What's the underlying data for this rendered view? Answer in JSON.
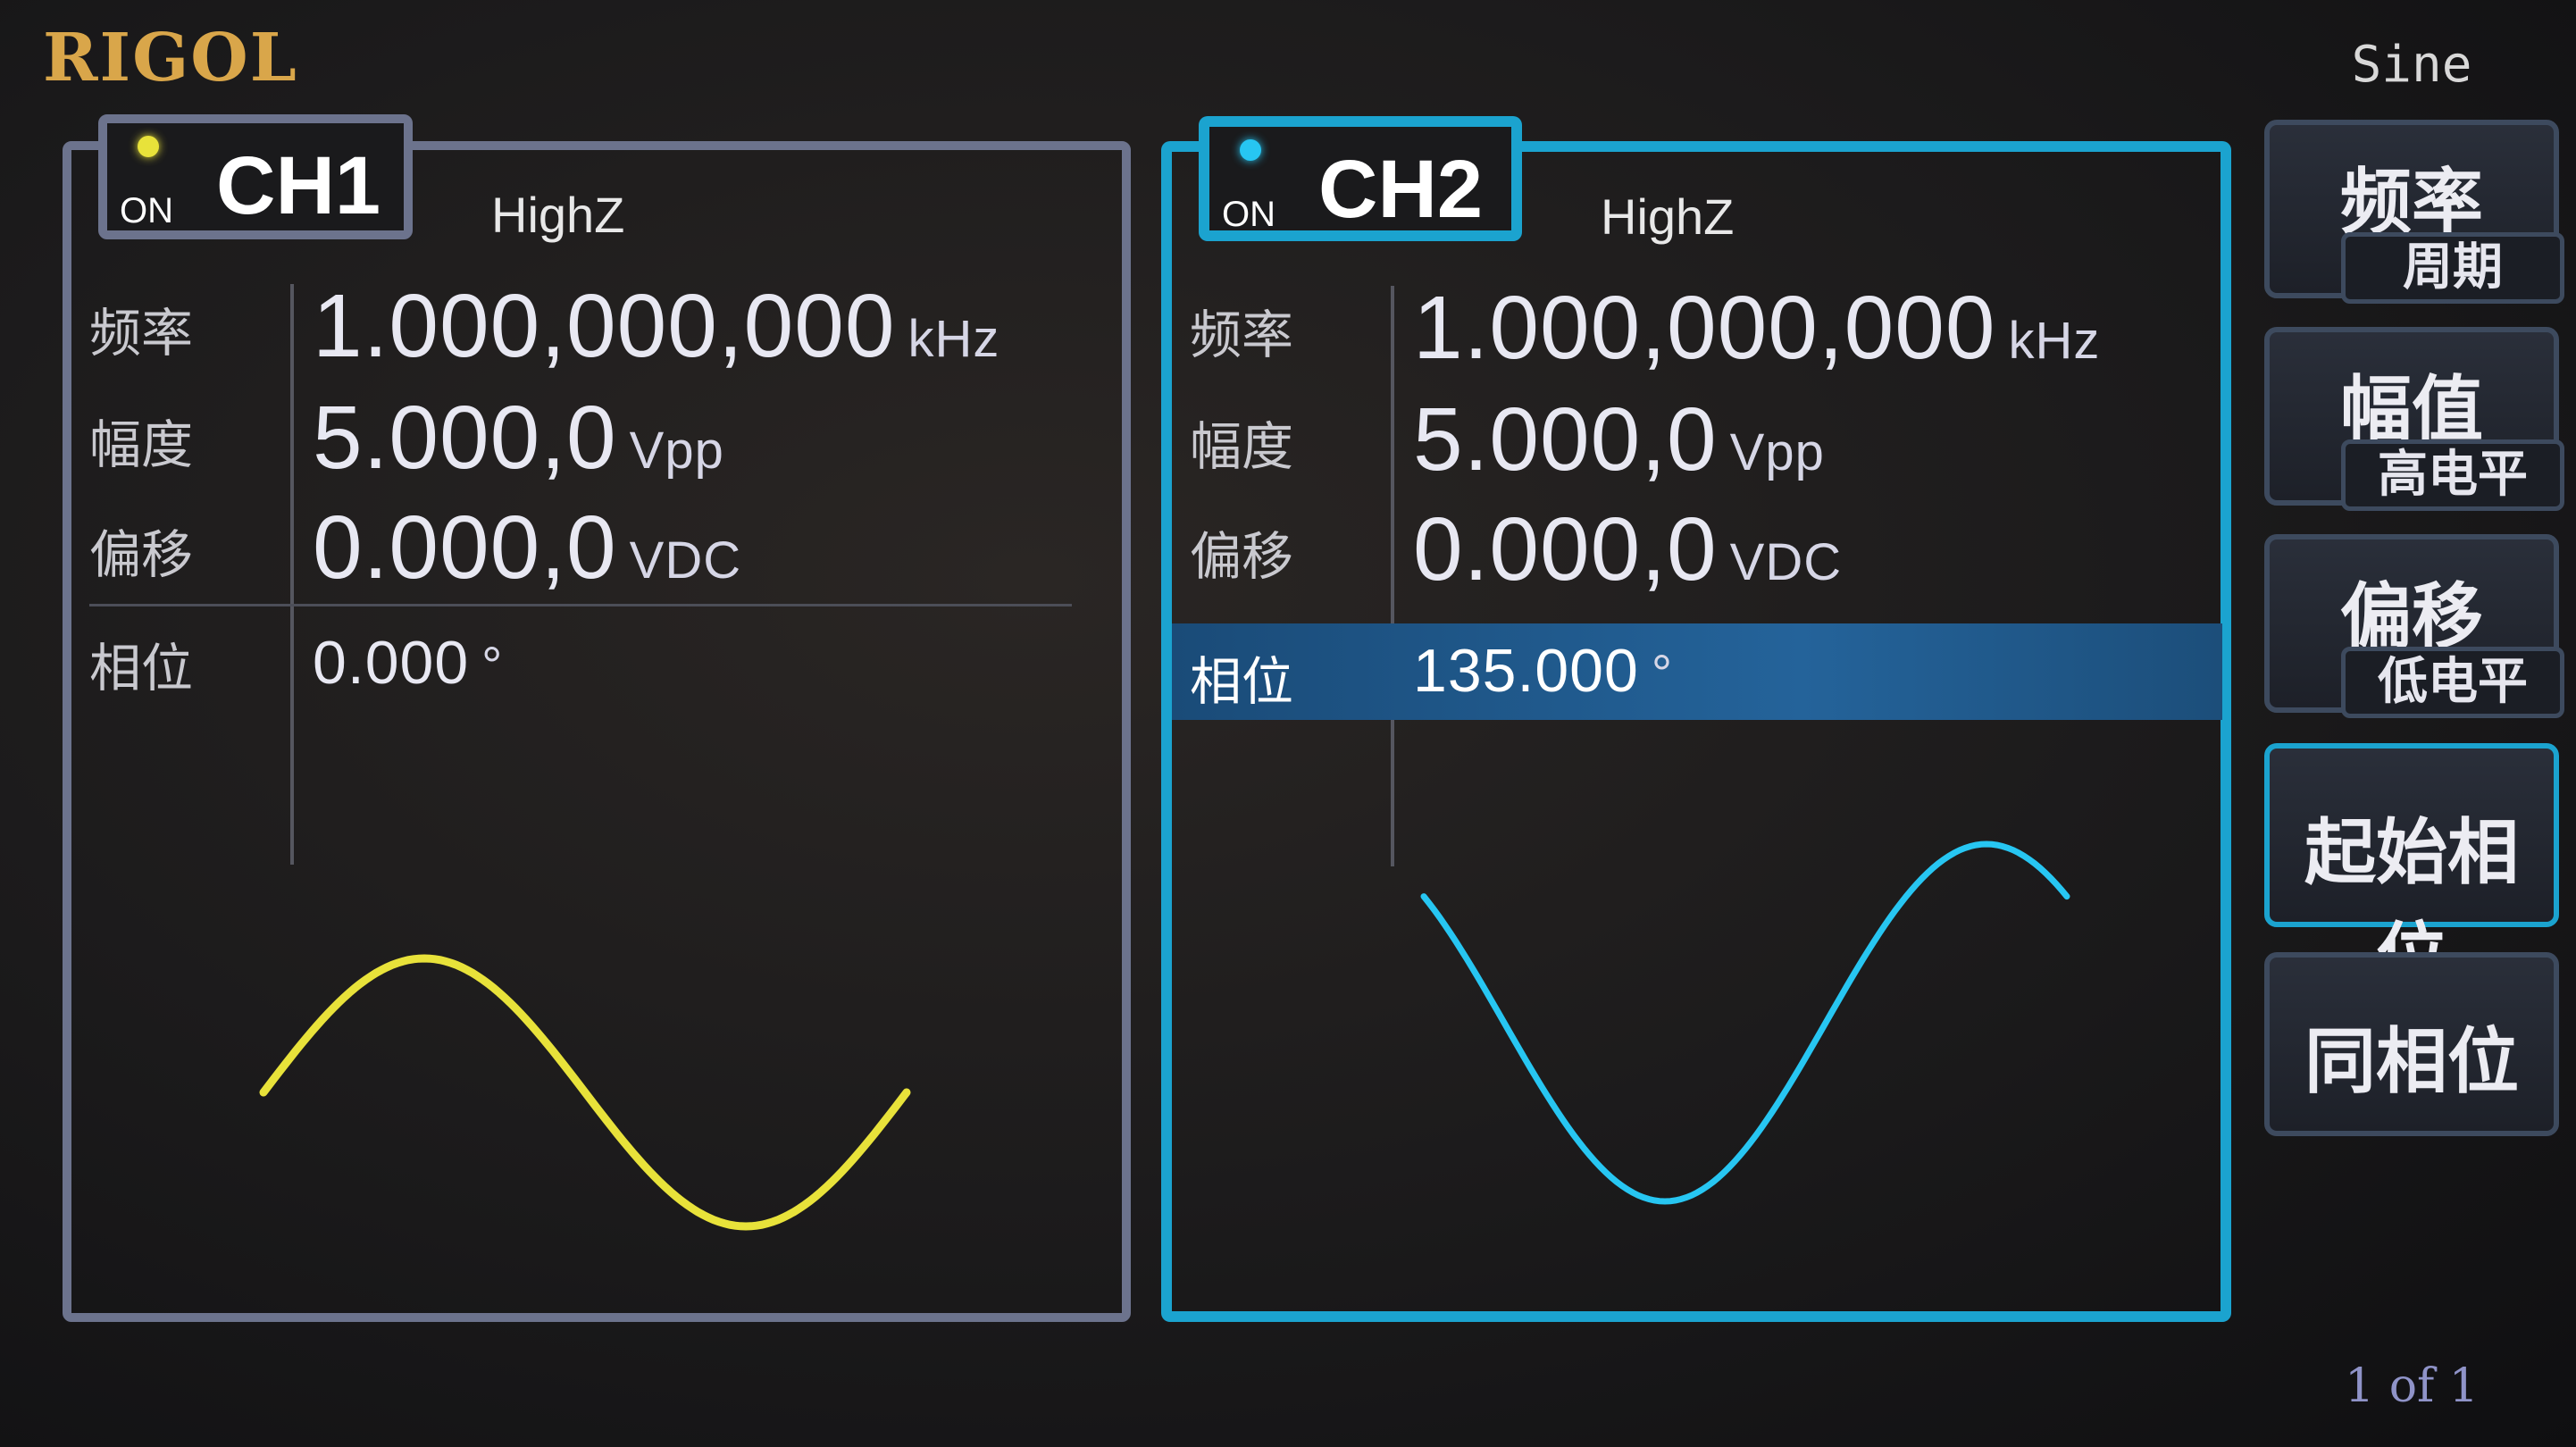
{
  "brand": "RIGOL",
  "mode": "Sine",
  "page_indicator": "1 of 1",
  "colors": {
    "ch1": "#e8e23a",
    "ch2": "#27c6f2",
    "accent": "#1ba3cf"
  },
  "ch1": {
    "status": "ON",
    "name": "CH1",
    "load": "HighZ",
    "freq_label": "频率",
    "freq_value": "1.000,000,000",
    "freq_unit": "kHz",
    "amp_label": "幅度",
    "amp_value": "5.000,0",
    "amp_unit": "Vpp",
    "offset_label": "偏移",
    "offset_value": "0.000,0",
    "offset_unit": "VDC",
    "phase_label": "相位",
    "phase_value": "0.000",
    "phase_unit": "°"
  },
  "ch2": {
    "status": "ON",
    "name": "CH2",
    "load": "HighZ",
    "freq_label": "频率",
    "freq_value": "1.000,000,000",
    "freq_unit": "kHz",
    "amp_label": "幅度",
    "amp_value": "5.000,0",
    "amp_unit": "Vpp",
    "offset_label": "偏移",
    "offset_value": "0.000,0",
    "offset_unit": "VDC",
    "phase_label": "相位",
    "phase_value": "135.000",
    "phase_unit": "°"
  },
  "softkeys": {
    "freq": "频率",
    "period": "周期",
    "ampl": "幅值",
    "high_level": "高电平",
    "offset": "偏移",
    "low_level": "低电平",
    "start_phase": "起始相位",
    "align_phase": "同相位"
  }
}
